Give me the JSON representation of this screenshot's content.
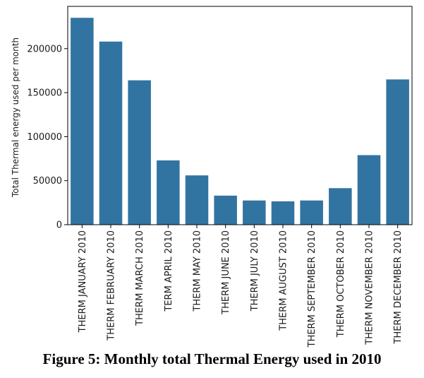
{
  "chart_data": {
    "type": "bar",
    "categories": [
      "THERM JANUARY 2010",
      "THERM FEBRUARY 2010",
      "THERM MARCH 2010",
      "TERM APRIL 2010",
      "THERM MAY 2010",
      "THERM JUNE 2010",
      "THERM JULY 2010",
      "THERM AUGUST 2010",
      "THERM SEPTEMBER 2010",
      "THERM OCTOBER 2010",
      "THERM NOVEMBER 2010",
      "THERM DECEMBER 2010"
    ],
    "values": [
      235000,
      208000,
      164000,
      73000,
      56000,
      33000,
      27500,
      26500,
      27500,
      41500,
      79000,
      165000
    ],
    "ylabel": "Total Thermal energy used per month",
    "ylim": [
      0,
      248000
    ],
    "yticks": [
      "0",
      "50000",
      "100000",
      "150000",
      "200000"
    ],
    "bar_color": "#3274a1",
    "grid": false,
    "legend": "none"
  },
  "caption": "Figure 5: Monthly total Thermal Energy used in 2010"
}
